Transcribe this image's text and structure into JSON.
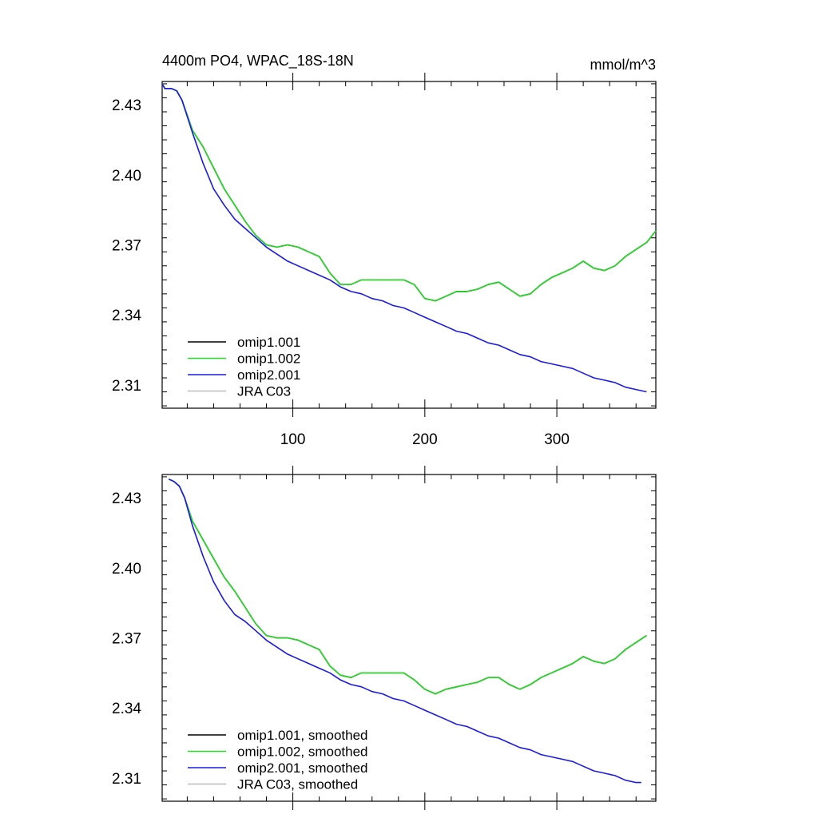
{
  "chart_data": [
    {
      "type": "line",
      "title": "4400m PO4, WPAC_18S-18N",
      "units": "mmol/m^3",
      "xlim": [
        1,
        375
      ],
      "ylim": [
        2.3,
        2.44
      ],
      "x_ticks": [
        100,
        200,
        300
      ],
      "y_ticks": [
        2.31,
        2.34,
        2.37,
        2.4,
        2.43
      ],
      "y_tick_labels": [
        "2.31",
        "2.34",
        "2.37",
        "2.40",
        "2.43"
      ],
      "x_tick_labels": [
        "100",
        "200",
        "300"
      ],
      "legend_position": "bottom-left",
      "series": [
        {
          "name": "omip1.001",
          "color": "#000000",
          "x": [
            1,
            3,
            8,
            12,
            16,
            24,
            32,
            40,
            48,
            56,
            64,
            72,
            80,
            88,
            96,
            104,
            112,
            120,
            128,
            136,
            144,
            152,
            160,
            168,
            176,
            184,
            192,
            200,
            208,
            216,
            224,
            232,
            240,
            248,
            256,
            264,
            272,
            280,
            288,
            296,
            304,
            312,
            320,
            328,
            336,
            344,
            352,
            360,
            368,
            375
          ],
          "y": [
            2.439,
            2.437,
            2.437,
            2.436,
            2.432,
            2.419,
            2.412,
            2.403,
            2.394,
            2.387,
            2.38,
            2.374,
            2.37,
            2.369,
            2.37,
            2.369,
            2.367,
            2.365,
            2.358,
            2.353,
            2.353,
            2.355,
            2.355,
            2.355,
            2.355,
            2.355,
            2.353,
            2.347,
            2.346,
            2.348,
            2.35,
            2.35,
            2.351,
            2.353,
            2.354,
            2.351,
            2.348,
            2.349,
            2.353,
            2.356,
            2.358,
            2.36,
            2.363,
            2.36,
            2.359,
            2.361,
            2.365,
            2.368,
            2.371,
            2.376
          ]
        },
        {
          "name": "omip1.002",
          "color": "#22dd22",
          "x": [
            1,
            3,
            8,
            12,
            16,
            24,
            32,
            40,
            48,
            56,
            64,
            72,
            80,
            88,
            96,
            104,
            112,
            120,
            128,
            136,
            144,
            152,
            160,
            168,
            176,
            184,
            192,
            200,
            208,
            216,
            224,
            232,
            240,
            248,
            256,
            264,
            272,
            280,
            288,
            296,
            304,
            312,
            320,
            328,
            336,
            344,
            352,
            360,
            368,
            375
          ],
          "y": [
            2.439,
            2.437,
            2.437,
            2.436,
            2.432,
            2.419,
            2.412,
            2.403,
            2.394,
            2.387,
            2.38,
            2.374,
            2.37,
            2.369,
            2.37,
            2.369,
            2.367,
            2.365,
            2.358,
            2.353,
            2.353,
            2.355,
            2.355,
            2.355,
            2.355,
            2.355,
            2.353,
            2.347,
            2.346,
            2.348,
            2.35,
            2.35,
            2.351,
            2.353,
            2.354,
            2.351,
            2.348,
            2.349,
            2.353,
            2.356,
            2.358,
            2.36,
            2.363,
            2.36,
            2.359,
            2.361,
            2.365,
            2.368,
            2.371,
            2.376
          ]
        },
        {
          "name": "omip2.001",
          "color": "#1a1ae6",
          "x": [
            1,
            3,
            8,
            12,
            16,
            24,
            32,
            40,
            48,
            56,
            64,
            72,
            80,
            88,
            96,
            104,
            112,
            120,
            128,
            136,
            144,
            152,
            160,
            168,
            176,
            184,
            192,
            200,
            208,
            216,
            224,
            232,
            240,
            248,
            256,
            264,
            272,
            280,
            288,
            296,
            304,
            312,
            320,
            328,
            336,
            344,
            352,
            360,
            368
          ],
          "y": [
            2.439,
            2.437,
            2.437,
            2.436,
            2.432,
            2.418,
            2.405,
            2.394,
            2.387,
            2.381,
            2.377,
            2.373,
            2.369,
            2.366,
            2.363,
            2.361,
            2.359,
            2.357,
            2.355,
            2.352,
            2.35,
            2.349,
            2.347,
            2.346,
            2.344,
            2.343,
            2.341,
            2.339,
            2.337,
            2.335,
            2.333,
            2.332,
            2.33,
            2.328,
            2.327,
            2.325,
            2.323,
            2.322,
            2.32,
            2.319,
            2.318,
            2.317,
            2.315,
            2.313,
            2.312,
            2.311,
            2.309,
            2.308,
            2.307
          ]
        },
        {
          "name": "JRA C03",
          "color": "#bbbbbb",
          "x": [],
          "y": []
        }
      ]
    },
    {
      "type": "line",
      "xlim": [
        1,
        375
      ],
      "ylim": [
        2.3,
        2.44
      ],
      "x_ticks": [
        100,
        200,
        300
      ],
      "y_ticks": [
        2.31,
        2.34,
        2.37,
        2.4,
        2.43
      ],
      "y_tick_labels": [
        "2.31",
        "2.34",
        "2.37",
        "2.40",
        "2.43"
      ],
      "legend_position": "bottom-left",
      "series": [
        {
          "name": "omip1.001, smoothed",
          "color": "#000000",
          "x": [
            6,
            10,
            14,
            18,
            24,
            32,
            40,
            48,
            56,
            64,
            72,
            80,
            88,
            96,
            104,
            112,
            120,
            128,
            136,
            144,
            152,
            160,
            168,
            176,
            184,
            192,
            200,
            208,
            216,
            224,
            232,
            240,
            248,
            256,
            264,
            272,
            280,
            288,
            296,
            304,
            312,
            320,
            328,
            336,
            344,
            352,
            360,
            368
          ],
          "y": [
            2.438,
            2.437,
            2.435,
            2.43,
            2.42,
            2.412,
            2.404,
            2.396,
            2.39,
            2.383,
            2.376,
            2.371,
            2.37,
            2.37,
            2.369,
            2.367,
            2.365,
            2.358,
            2.354,
            2.353,
            2.355,
            2.355,
            2.355,
            2.355,
            2.355,
            2.352,
            2.348,
            2.346,
            2.348,
            2.349,
            2.35,
            2.351,
            2.353,
            2.353,
            2.35,
            2.348,
            2.35,
            2.353,
            2.355,
            2.357,
            2.359,
            2.362,
            2.36,
            2.359,
            2.361,
            2.365,
            2.368,
            2.371
          ]
        },
        {
          "name": "omip1.002, smoothed",
          "color": "#22dd22",
          "x": [
            6,
            10,
            14,
            18,
            24,
            32,
            40,
            48,
            56,
            64,
            72,
            80,
            88,
            96,
            104,
            112,
            120,
            128,
            136,
            144,
            152,
            160,
            168,
            176,
            184,
            192,
            200,
            208,
            216,
            224,
            232,
            240,
            248,
            256,
            264,
            272,
            280,
            288,
            296,
            304,
            312,
            320,
            328,
            336,
            344,
            352,
            360,
            368
          ],
          "y": [
            2.438,
            2.437,
            2.435,
            2.43,
            2.42,
            2.412,
            2.404,
            2.396,
            2.39,
            2.383,
            2.376,
            2.371,
            2.37,
            2.37,
            2.369,
            2.367,
            2.365,
            2.358,
            2.354,
            2.353,
            2.355,
            2.355,
            2.355,
            2.355,
            2.355,
            2.352,
            2.348,
            2.346,
            2.348,
            2.349,
            2.35,
            2.351,
            2.353,
            2.353,
            2.35,
            2.348,
            2.35,
            2.353,
            2.355,
            2.357,
            2.359,
            2.362,
            2.36,
            2.359,
            2.361,
            2.365,
            2.368,
            2.371
          ]
        },
        {
          "name": "omip2.001, smoothed",
          "color": "#1a1ae6",
          "x": [
            6,
            10,
            14,
            18,
            24,
            32,
            40,
            48,
            56,
            64,
            72,
            80,
            88,
            96,
            104,
            112,
            120,
            128,
            136,
            144,
            152,
            160,
            168,
            176,
            184,
            192,
            200,
            208,
            216,
            224,
            232,
            240,
            248,
            256,
            264,
            272,
            280,
            288,
            296,
            304,
            312,
            320,
            328,
            336,
            344,
            352,
            360,
            364
          ],
          "y": [
            2.438,
            2.437,
            2.435,
            2.43,
            2.418,
            2.405,
            2.394,
            2.386,
            2.38,
            2.377,
            2.373,
            2.369,
            2.366,
            2.363,
            2.361,
            2.359,
            2.357,
            2.355,
            2.352,
            2.35,
            2.349,
            2.347,
            2.346,
            2.344,
            2.343,
            2.341,
            2.339,
            2.337,
            2.335,
            2.333,
            2.332,
            2.33,
            2.328,
            2.327,
            2.325,
            2.323,
            2.322,
            2.32,
            2.319,
            2.318,
            2.317,
            2.315,
            2.313,
            2.312,
            2.311,
            2.309,
            2.308,
            2.308
          ]
        },
        {
          "name": "JRA C03, smoothed",
          "color": "#bbbbbb",
          "x": [],
          "y": []
        }
      ]
    }
  ]
}
